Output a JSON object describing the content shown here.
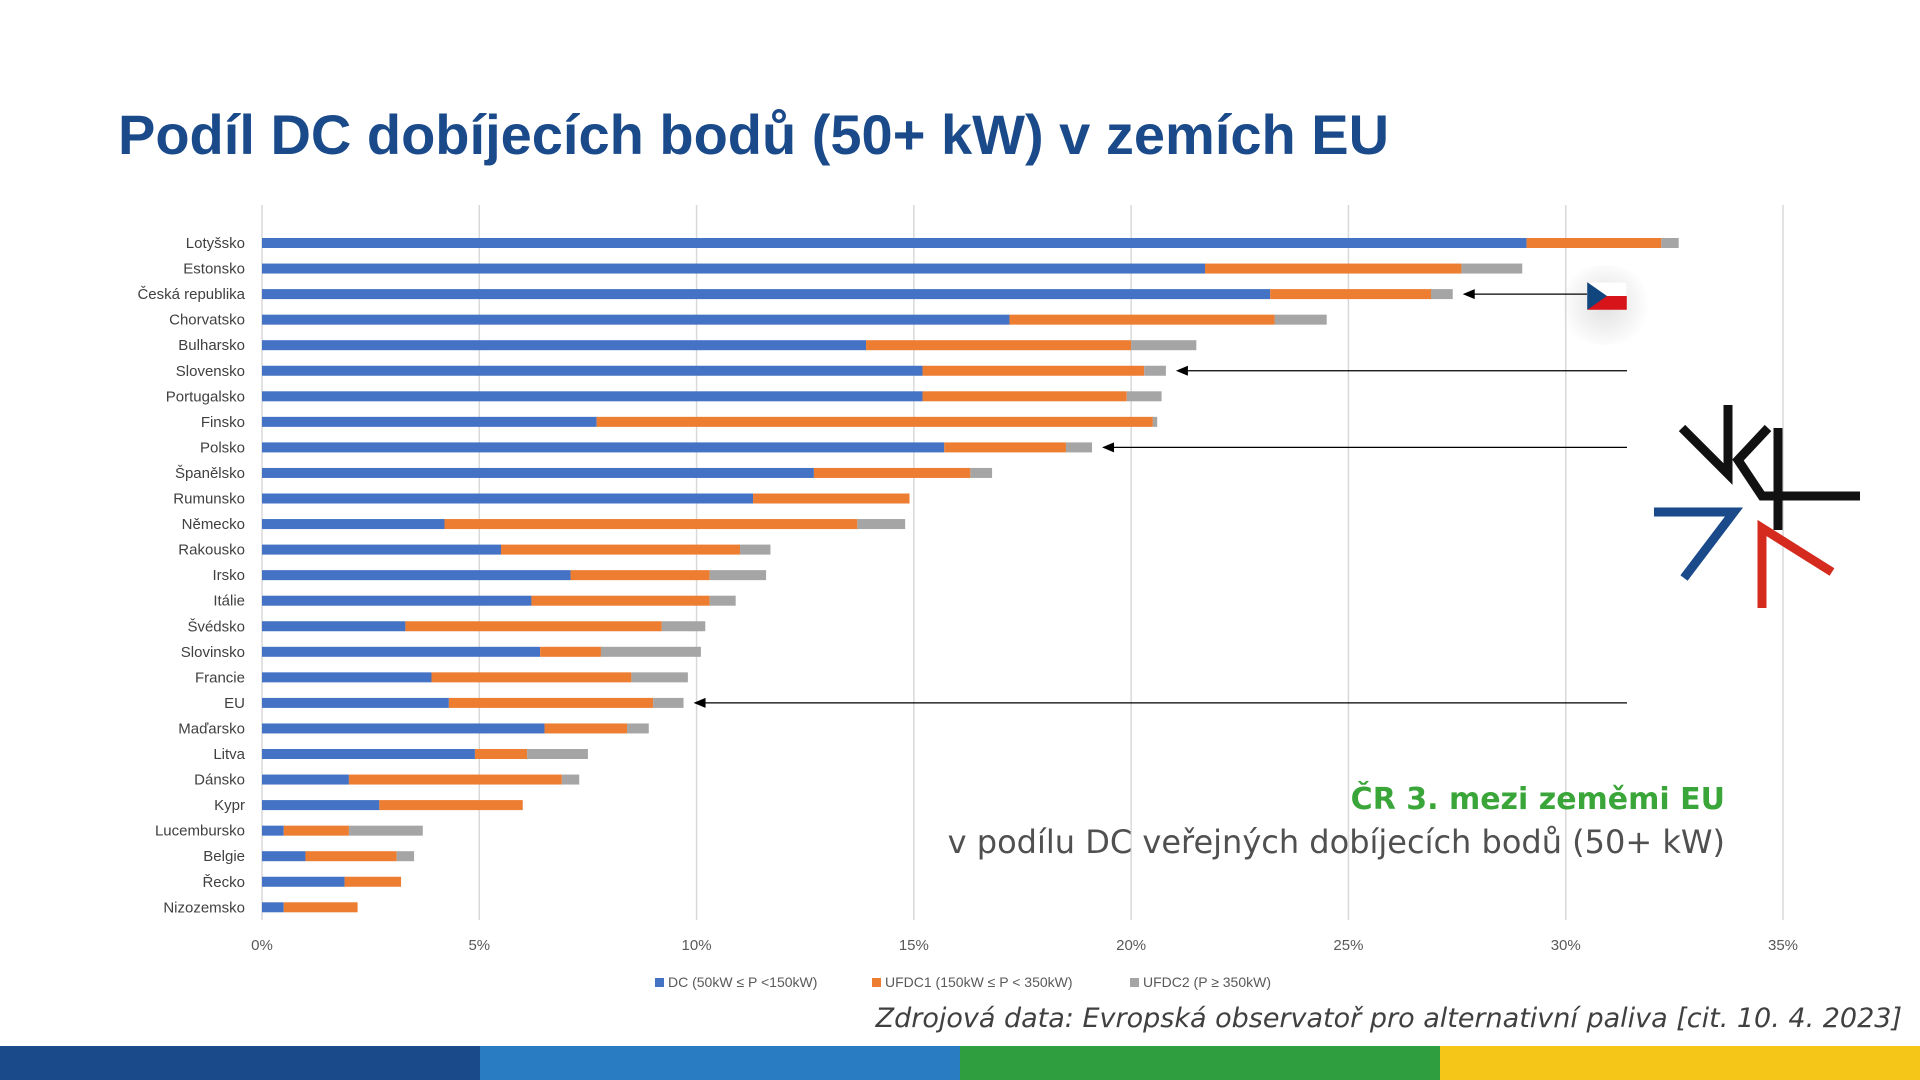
{
  "slide": {
    "title": "Podíl DC dobíjecích bodů (50+ kW) v zemích EU",
    "callout_line1": "ČR 3. mezi zeměmi EU",
    "callout_line2": "v podílu DC veřejných dobíjecích bodů (50+ kW)",
    "source": "Zdrojová data: Evropská observatoř pro alternativní paliva [cit. 10. 4. 2023]",
    "footer_colors": [
      "#1a4a8a",
      "#2a7cc2",
      "#2e9e3e",
      "#f5c518"
    ],
    "logo_name": "V4 logo",
    "flag_name": "czech-flag"
  },
  "chart_data": {
    "type": "bar",
    "orientation": "horizontal",
    "stacked": true,
    "categories": [
      "Lotyšsko",
      "Estonsko",
      "Česká republika",
      "Chorvatsko",
      "Bulharsko",
      "Slovensko",
      "Portugalsko",
      "Finsko",
      "Polsko",
      "Španělsko",
      "Rumunsko",
      "Německo",
      "Rakousko",
      "Irsko",
      "Itálie",
      "Švédsko",
      "Slovinsko",
      "Francie",
      "EU",
      "Maďarsko",
      "Litva",
      "Dánsko",
      "Kypr",
      "Lucembursko",
      "Belgie",
      "Řecko",
      "Nizozemsko"
    ],
    "series": [
      {
        "name": "DC (50kW ≤ P <150kW)",
        "color": "#4472c4",
        "values": [
          29.1,
          21.7,
          23.2,
          17.2,
          13.9,
          15.2,
          15.2,
          7.7,
          15.7,
          12.7,
          11.3,
          4.2,
          5.5,
          7.1,
          6.2,
          3.3,
          6.4,
          3.9,
          4.3,
          6.5,
          4.9,
          2.0,
          2.7,
          0.5,
          1.0,
          1.9,
          0.5
        ]
      },
      {
        "name": "UFDC1 (150kW ≤ P < 350kW)",
        "color": "#ed7d31",
        "values": [
          3.1,
          5.9,
          3.7,
          6.1,
          6.1,
          5.1,
          4.7,
          12.8,
          2.8,
          3.6,
          3.6,
          9.5,
          5.5,
          3.2,
          4.1,
          5.9,
          1.4,
          4.6,
          4.7,
          1.9,
          1.2,
          4.9,
          3.3,
          1.5,
          2.1,
          1.3,
          1.7
        ]
      },
      {
        "name": "UFDC2 (P ≥ 350kW)",
        "color": "#a5a5a5",
        "values": [
          0.4,
          1.4,
          0.5,
          1.2,
          1.5,
          0.5,
          0.8,
          0.1,
          0.6,
          0.5,
          0.0,
          1.1,
          0.7,
          1.3,
          0.6,
          1.0,
          2.3,
          1.3,
          0.7,
          0.5,
          1.4,
          0.4,
          0.0,
          1.7,
          0.4,
          0.0,
          0.0
        ]
      }
    ],
    "xlim": [
      0,
      35
    ],
    "xticks": [
      "0%",
      "5%",
      "10%",
      "15%",
      "20%",
      "25%",
      "30%",
      "35%"
    ],
    "grid": "vertical",
    "legend": "bottom",
    "highlighted": [
      "Česká republika",
      "Slovensko",
      "Polsko",
      "EU"
    ]
  }
}
